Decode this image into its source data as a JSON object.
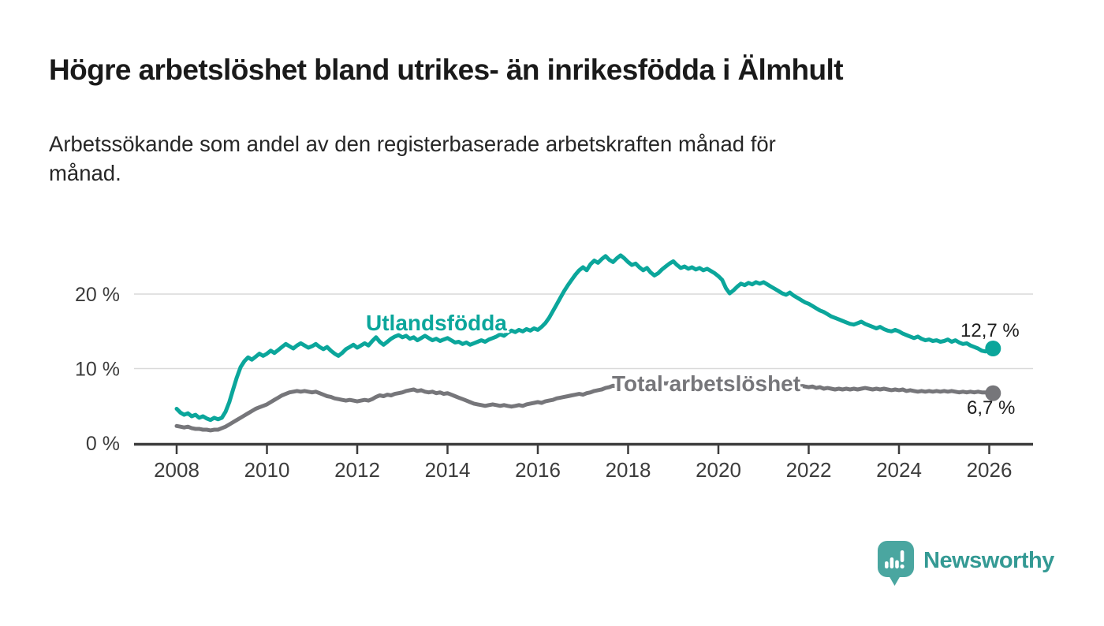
{
  "header": {
    "title": "Högre arbetslöshet bland utrikes- än inrikesfödda i Älmhult",
    "subtitle": "Arbetssökande som andel av den registerbaserade arbetskraften månad för månad."
  },
  "chart_data": {
    "type": "line",
    "unit": "%",
    "x_interval": "monthly",
    "x_start": "2008-01",
    "x_end": "2026-02",
    "x_ticks": [
      2008,
      2010,
      2012,
      2014,
      2016,
      2018,
      2020,
      2022,
      2024,
      2026
    ],
    "y_ticks": [
      {
        "value": 0,
        "label": "0 %"
      },
      {
        "value": 10,
        "label": "10 %"
      },
      {
        "value": 20,
        "label": "20 %"
      }
    ],
    "ylim": [
      0,
      27.5
    ],
    "grid": "horizontal",
    "legend": "inline-labels",
    "style": {
      "grid_color": "#d9d9d9",
      "axis_color": "#3c3c3c",
      "tick_label_color": "#3c3c3c",
      "value_label_color": "#1d1d1d",
      "background": "#ffffff"
    },
    "series": [
      {
        "id": "utlandsfodda",
        "name": "Utlandsfödda",
        "color": "#0ba69b",
        "end_value": 12.7,
        "end_label": "12,7 %",
        "values": [
          4.6,
          4.1,
          3.8,
          4.0,
          3.6,
          3.8,
          3.4,
          3.6,
          3.3,
          3.1,
          3.4,
          3.2,
          3.4,
          4.2,
          5.5,
          7.2,
          8.8,
          10.2,
          11.0,
          11.5,
          11.2,
          11.6,
          12.0,
          11.7,
          12.0,
          12.4,
          12.1,
          12.5,
          12.9,
          13.3,
          13.0,
          12.7,
          13.1,
          13.4,
          13.1,
          12.8,
          13.0,
          13.3,
          12.9,
          12.6,
          12.9,
          12.4,
          12.0,
          11.7,
          12.1,
          12.6,
          12.9,
          13.2,
          12.8,
          13.1,
          13.4,
          13.1,
          13.7,
          14.2,
          13.6,
          13.2,
          13.6,
          14.0,
          14.3,
          14.5,
          14.2,
          14.4,
          14.0,
          14.2,
          13.8,
          14.1,
          14.4,
          14.1,
          13.8,
          14.0,
          13.7,
          13.9,
          14.1,
          13.8,
          13.5,
          13.6,
          13.3,
          13.5,
          13.2,
          13.4,
          13.6,
          13.8,
          13.6,
          13.9,
          14.1,
          14.3,
          14.6,
          14.4,
          14.8,
          15.1,
          14.9,
          15.2,
          15.0,
          15.3,
          15.1,
          15.4,
          15.2,
          15.6,
          16.1,
          16.8,
          17.7,
          18.6,
          19.5,
          20.4,
          21.2,
          21.9,
          22.6,
          23.2,
          23.6,
          23.2,
          24.0,
          24.5,
          24.2,
          24.7,
          25.1,
          24.6,
          24.3,
          24.8,
          25.2,
          24.8,
          24.3,
          23.9,
          24.1,
          23.6,
          23.2,
          23.5,
          22.9,
          22.5,
          22.8,
          23.3,
          23.7,
          24.1,
          24.4,
          23.9,
          23.5,
          23.7,
          23.4,
          23.6,
          23.3,
          23.5,
          23.2,
          23.4,
          23.1,
          22.8,
          22.4,
          21.9,
          20.8,
          20.1,
          20.5,
          21.0,
          21.4,
          21.2,
          21.5,
          21.3,
          21.6,
          21.4,
          21.6,
          21.3,
          21.0,
          20.7,
          20.4,
          20.1,
          19.9,
          20.2,
          19.8,
          19.5,
          19.2,
          18.9,
          18.7,
          18.4,
          18.1,
          17.8,
          17.6,
          17.3,
          17.0,
          16.8,
          16.6,
          16.4,
          16.2,
          16.0,
          15.9,
          16.1,
          16.3,
          16.0,
          15.8,
          15.6,
          15.4,
          15.6,
          15.3,
          15.1,
          15.0,
          15.2,
          15.0,
          14.7,
          14.5,
          14.3,
          14.1,
          14.3,
          14.0,
          13.8,
          13.9,
          13.7,
          13.8,
          13.6,
          13.7,
          13.9,
          13.6,
          13.8,
          13.5,
          13.3,
          13.4,
          13.1,
          12.9,
          12.7,
          12.4,
          12.3,
          12.5,
          12.7
        ]
      },
      {
        "id": "total",
        "name": "Total arbetslöshet",
        "color": "#76767a",
        "end_value": 6.7,
        "end_label": "6,7 %",
        "values": [
          2.3,
          2.2,
          2.1,
          2.2,
          2.0,
          1.9,
          1.9,
          1.8,
          1.8,
          1.7,
          1.8,
          1.8,
          2.0,
          2.2,
          2.5,
          2.8,
          3.1,
          3.4,
          3.7,
          4.0,
          4.3,
          4.6,
          4.8,
          5.0,
          5.2,
          5.5,
          5.8,
          6.1,
          6.4,
          6.6,
          6.8,
          6.9,
          7.0,
          6.9,
          7.0,
          6.9,
          6.8,
          6.9,
          6.7,
          6.5,
          6.3,
          6.2,
          6.0,
          5.9,
          5.8,
          5.7,
          5.8,
          5.7,
          5.6,
          5.7,
          5.8,
          5.7,
          5.9,
          6.2,
          6.4,
          6.3,
          6.5,
          6.4,
          6.6,
          6.7,
          6.8,
          7.0,
          7.1,
          7.2,
          7.0,
          7.1,
          6.9,
          6.8,
          6.9,
          6.7,
          6.8,
          6.6,
          6.7,
          6.5,
          6.3,
          6.1,
          5.9,
          5.7,
          5.5,
          5.3,
          5.2,
          5.1,
          5.0,
          5.1,
          5.2,
          5.1,
          5.0,
          5.1,
          5.0,
          4.9,
          5.0,
          5.1,
          5.0,
          5.2,
          5.3,
          5.4,
          5.5,
          5.4,
          5.6,
          5.7,
          5.8,
          6.0,
          6.1,
          6.2,
          6.3,
          6.4,
          6.5,
          6.6,
          6.5,
          6.7,
          6.8,
          7.0,
          7.1,
          7.2,
          7.4,
          7.5,
          7.7,
          7.6,
          7.8,
          7.7,
          7.9,
          7.8,
          8.0,
          7.9,
          8.0,
          8.1,
          8.0,
          7.9,
          8.0,
          8.1,
          8.0,
          8.1,
          8.0,
          8.1,
          8.0,
          7.9,
          8.0,
          7.9,
          7.8,
          7.9,
          7.8,
          7.9,
          7.8,
          7.9,
          8.0,
          8.1,
          8.4,
          8.6,
          8.5,
          8.4,
          8.5,
          8.4,
          8.3,
          8.2,
          8.3,
          8.2,
          8.1,
          8.2,
          8.0,
          7.9,
          8.0,
          7.9,
          7.8,
          7.7,
          7.8,
          7.6,
          7.7,
          7.6,
          7.5,
          7.6,
          7.4,
          7.5,
          7.3,
          7.4,
          7.3,
          7.2,
          7.3,
          7.2,
          7.3,
          7.2,
          7.3,
          7.2,
          7.3,
          7.4,
          7.3,
          7.2,
          7.3,
          7.2,
          7.3,
          7.2,
          7.1,
          7.2,
          7.1,
          7.2,
          7.0,
          7.1,
          7.0,
          6.9,
          7.0,
          6.9,
          7.0,
          6.9,
          7.0,
          6.9,
          7.0,
          6.9,
          7.0,
          6.9,
          6.8,
          6.9,
          6.8,
          6.9,
          6.8,
          6.9,
          6.8,
          6.8,
          6.8,
          6.7
        ]
      }
    ]
  },
  "branding": {
    "logo_text": "Newsworthy",
    "logo_text_color": "#349a94",
    "bubble_color": "#4aa6a0"
  }
}
